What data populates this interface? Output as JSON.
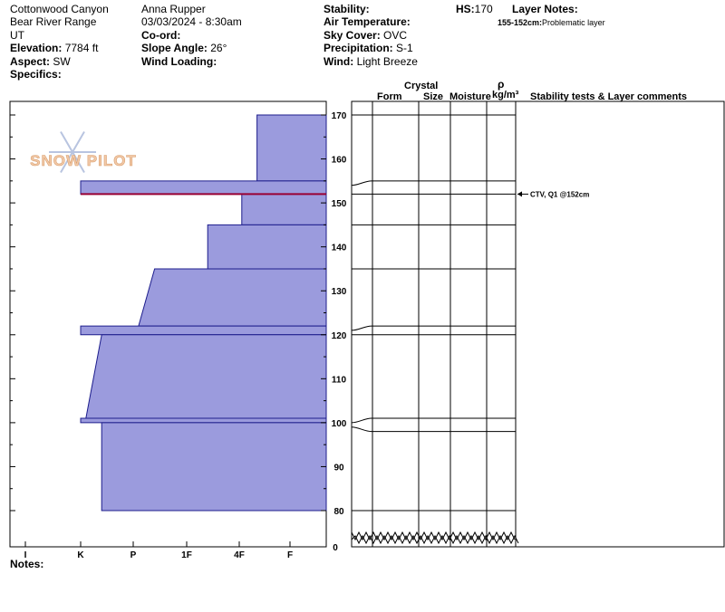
{
  "meta": {
    "location": "Cottonwood Canyon",
    "range": "Bear River Range",
    "state": "UT",
    "elevation_label": "Elevation:",
    "elevation_value": "7784 ft",
    "aspect_label": "Aspect:",
    "aspect_value": "SW",
    "specifics_label": "Specifics:",
    "observer": "Anna Rupper",
    "datetime": "03/03/2024 - 8:30am",
    "coord_label": "Co-ord:",
    "slope_label": "Slope Angle:",
    "slope_value": "26°",
    "wind_loading_label": "Wind Loading:",
    "stability_label": "Stability:",
    "air_temp_label": "Air Temperature:",
    "sky_label": "Sky Cover:",
    "sky_value": "OVC",
    "precip_label": "Precipitation:",
    "precip_value": "S-1",
    "wind_label": "Wind:",
    "wind_value": "Light Breeze",
    "hs_label": "HS:",
    "hs_value": "170",
    "layer_notes_label": "Layer Notes:",
    "layer_note_range": "155-152cm:",
    "layer_note_text": "Problematic layer",
    "notes_label": "Notes:"
  },
  "watermark": {
    "text": "SNOW PILOT"
  },
  "headers": {
    "crystal": "Crystal",
    "form": "Form",
    "size": "Size",
    "moisture": "Moisture",
    "rho": "ρ",
    "density_unit": "kg/m³",
    "stability": "Stability tests & Layer comments"
  },
  "chart_data": {
    "type": "bar",
    "title": "",
    "xlabel": "",
    "ylabel": "",
    "hardness_ticks": [
      "I",
      "K",
      "P",
      "1F",
      "4F",
      "F"
    ],
    "hardness_direction": "bars extend from right (F) toward left (I)",
    "ylim": [
      80,
      170
    ],
    "y_ticks": [
      80,
      90,
      100,
      110,
      120,
      130,
      140,
      150,
      160,
      170
    ],
    "y_break_to": 0,
    "layers": [
      {
        "top": 170,
        "bottom": 155,
        "hardness_top": 0.65,
        "hardness_bottom": 0.65
      },
      {
        "top": 155,
        "bottom": 152,
        "hardness_top": 4.0,
        "hardness_bottom": 4.0
      },
      {
        "top": 152,
        "bottom": 145,
        "hardness_top": 0.95,
        "hardness_bottom": 0.95
      },
      {
        "top": 145,
        "bottom": 135,
        "hardness_top": 1.6,
        "hardness_bottom": 1.6
      },
      {
        "top": 135,
        "bottom": 122,
        "hardness_top": 2.6,
        "hardness_bottom": 2.9
      },
      {
        "top": 122,
        "bottom": 120,
        "hardness_top": 4.0,
        "hardness_bottom": 4.0
      },
      {
        "top": 120,
        "bottom": 101,
        "hardness_top": 3.6,
        "hardness_bottom": 3.9
      },
      {
        "top": 101,
        "bottom": 100,
        "hardness_top": 4.0,
        "hardness_bottom": 4.0
      },
      {
        "top": 100,
        "bottom": 80,
        "hardness_top": 3.6,
        "hardness_bottom": 3.6
      }
    ],
    "problem_layer_line": 152,
    "grid_boundaries": [
      170,
      155,
      152,
      145,
      135,
      122,
      120,
      101,
      98,
      80
    ],
    "stability_tests": [
      {
        "depth": 152,
        "text": "CTV, Q1 @152cm"
      }
    ],
    "accent_colors": {
      "fill": "#9b9bdd",
      "stroke": "#1c1c8c",
      "problem": "#990033"
    }
  }
}
